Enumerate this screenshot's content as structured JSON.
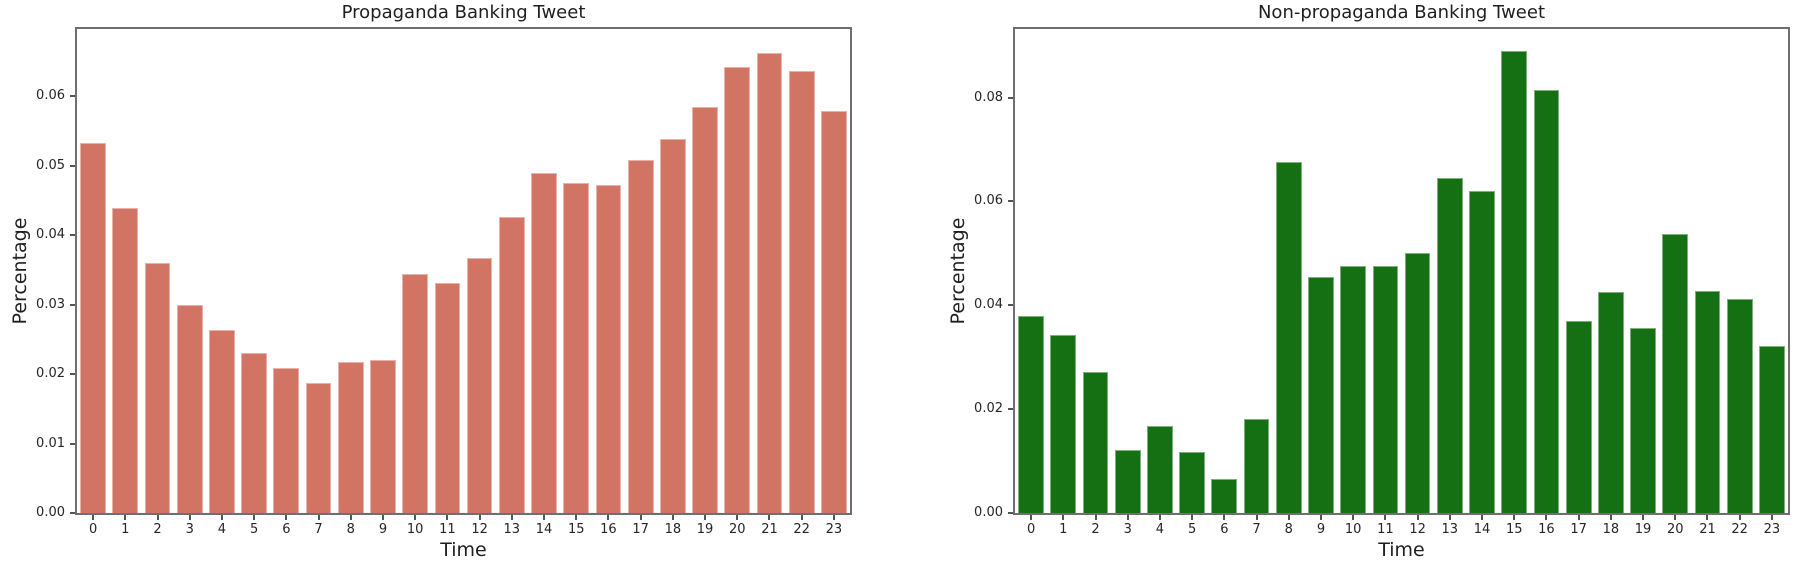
{
  "chart_data": [
    {
      "type": "bar",
      "title": "Propaganda Banking Tweet",
      "xlabel": "Time",
      "ylabel": "Percentage",
      "categories": [
        "0",
        "1",
        "2",
        "3",
        "4",
        "5",
        "6",
        "7",
        "8",
        "9",
        "10",
        "11",
        "12",
        "13",
        "14",
        "15",
        "16",
        "17",
        "18",
        "19",
        "20",
        "21",
        "22",
        "23"
      ],
      "values": [
        0.0533,
        0.0439,
        0.036,
        0.03,
        0.0263,
        0.0231,
        0.0209,
        0.0187,
        0.0217,
        0.0221,
        0.0344,
        0.0331,
        0.0367,
        0.0426,
        0.0489,
        0.0475,
        0.0472,
        0.0508,
        0.0539,
        0.0584,
        0.0643,
        0.0662,
        0.0637,
        0.0579
      ],
      "ylim": [
        0,
        0.0697
      ],
      "ytick_labels": [
        "0.00",
        "0.01",
        "0.02",
        "0.03",
        "0.04",
        "0.05",
        "0.06"
      ],
      "bar_color": "#d17464",
      "grid": false,
      "legend": "none"
    },
    {
      "type": "bar",
      "title": "Non-propaganda Banking Tweet",
      "xlabel": "Time",
      "ylabel": "Percentage",
      "categories": [
        "0",
        "1",
        "2",
        "3",
        "4",
        "5",
        "6",
        "7",
        "8",
        "9",
        "10",
        "11",
        "12",
        "13",
        "14",
        "15",
        "16",
        "17",
        "18",
        "19",
        "20",
        "21",
        "22",
        "23"
      ],
      "values": [
        0.0379,
        0.0342,
        0.0271,
        0.0121,
        0.0167,
        0.0117,
        0.0065,
        0.0181,
        0.0676,
        0.0455,
        0.0475,
        0.0475,
        0.05,
        0.0646,
        0.0621,
        0.089,
        0.0815,
        0.0369,
        0.0425,
        0.0356,
        0.0538,
        0.0427,
        0.0412,
        0.0321
      ],
      "ylim": [
        0,
        0.0932
      ],
      "ytick_labels": [
        "0.00",
        "0.02",
        "0.04",
        "0.06",
        "0.08"
      ],
      "bar_color": "#156f13",
      "grid": false,
      "legend": "none"
    }
  ],
  "style": {
    "background": "#ffffff",
    "spine_color": "#6f6f6f",
    "tick_color": "#555555",
    "text_color": "#1f1f1f",
    "bar_colors": [
      "#d17464",
      "#156f13"
    ]
  }
}
